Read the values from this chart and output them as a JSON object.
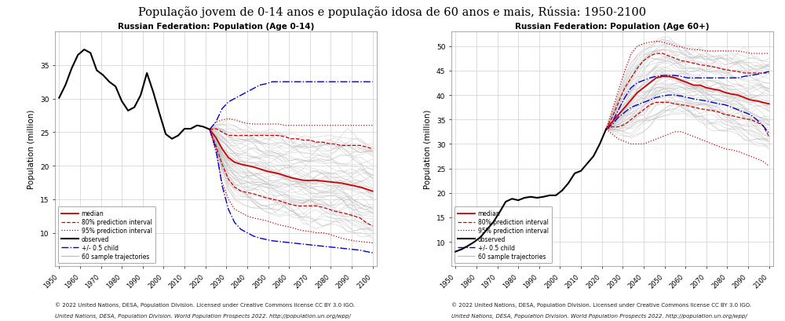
{
  "title": "População jovem de 0-14 anos e população idosa de 60 anos e mais, Rússia: 1950-2100",
  "title_fontsize": 10.5,
  "subtitle1": "Russian Federation: Population (Age 0-14)",
  "subtitle2": "Russian Federation: Population (Age 60+)",
  "subtitle_fontsize": 7.5,
  "ylabel": "Population (million)",
  "ylabel_fontsize": 7.5,
  "footnote_line1": "© 2022 United Nations, DESA, Population Division. Licensed under Creative Commons license CC BY 3.0 IGO.",
  "footnote_line2": "United Nations, DESA, Population Division. World Population Prospects 2022. http://population.un.org/wpp/",
  "footnote_fontsize": 5.0,
  "bg_color": "#ffffff",
  "grid_color": "#d0d0d0",
  "plot_bg": "#ffffff",
  "left_observed_years": [
    1950,
    1953,
    1956,
    1959,
    1962,
    1965,
    1968,
    1971,
    1974,
    1977,
    1980,
    1983,
    1986,
    1989,
    1992,
    1995,
    1998,
    2001,
    2004,
    2007,
    2010,
    2013,
    2016,
    2019,
    2022
  ],
  "left_observed_vals": [
    30.1,
    32.0,
    34.5,
    36.5,
    37.3,
    36.8,
    34.2,
    33.5,
    32.5,
    31.8,
    29.6,
    28.2,
    28.7,
    30.5,
    33.8,
    31.0,
    27.8,
    24.7,
    24.0,
    24.5,
    25.5,
    25.5,
    26.0,
    25.8,
    25.4
  ],
  "left_proj_years": [
    2022,
    2025,
    2028,
    2031,
    2034,
    2037,
    2040,
    2043,
    2046,
    2049,
    2052,
    2055,
    2058,
    2061,
    2064,
    2067,
    2070,
    2073,
    2076,
    2079,
    2082,
    2085,
    2088,
    2091,
    2094,
    2097,
    2100
  ],
  "left_median": [
    25.4,
    24.2,
    22.5,
    21.2,
    20.5,
    20.2,
    20.0,
    19.8,
    19.5,
    19.2,
    19.0,
    18.8,
    18.5,
    18.2,
    18.0,
    17.8,
    17.8,
    17.8,
    17.7,
    17.6,
    17.5,
    17.4,
    17.2,
    17.0,
    16.8,
    16.5,
    16.2
  ],
  "left_80_upper": [
    25.4,
    25.5,
    25.0,
    24.5,
    24.5,
    24.5,
    24.5,
    24.5,
    24.5,
    24.5,
    24.5,
    24.5,
    24.3,
    24.0,
    24.0,
    23.8,
    23.8,
    23.5,
    23.5,
    23.3,
    23.2,
    23.0,
    23.0,
    23.0,
    23.0,
    22.8,
    22.5
  ],
  "left_80_lower": [
    25.4,
    23.0,
    20.2,
    18.0,
    16.8,
    16.2,
    16.0,
    15.8,
    15.5,
    15.2,
    15.0,
    14.8,
    14.5,
    14.2,
    14.0,
    14.0,
    14.0,
    14.0,
    13.8,
    13.5,
    13.2,
    13.0,
    12.8,
    12.5,
    12.2,
    11.5,
    11.0
  ],
  "left_95_upper": [
    25.4,
    26.5,
    26.8,
    27.0,
    26.8,
    26.5,
    26.3,
    26.2,
    26.2,
    26.2,
    26.2,
    26.2,
    26.0,
    26.0,
    26.0,
    26.0,
    26.0,
    26.0,
    26.0,
    26.0,
    26.0,
    26.0,
    26.0,
    26.0,
    26.0,
    26.0,
    26.0
  ],
  "left_95_lower": [
    25.4,
    22.0,
    17.5,
    15.0,
    13.5,
    13.0,
    12.5,
    12.2,
    12.0,
    11.8,
    11.5,
    11.2,
    11.0,
    10.8,
    10.5,
    10.3,
    10.2,
    10.0,
    10.0,
    9.8,
    9.5,
    9.2,
    9.0,
    8.8,
    8.7,
    8.6,
    8.5
  ],
  "left_blue_upper": [
    25.4,
    26.5,
    28.5,
    29.5,
    30.0,
    30.5,
    31.0,
    31.5,
    32.0,
    32.2,
    32.5,
    32.5,
    32.5,
    32.5,
    32.5,
    32.5,
    32.5,
    32.5,
    32.5,
    32.5,
    32.5,
    32.5,
    32.5,
    32.5,
    32.5,
    32.5,
    32.5
  ],
  "left_blue_lower": [
    25.4,
    22.5,
    17.0,
    13.5,
    11.5,
    10.5,
    10.0,
    9.5,
    9.2,
    9.0,
    8.8,
    8.7,
    8.6,
    8.5,
    8.4,
    8.3,
    8.2,
    8.1,
    8.0,
    7.9,
    7.8,
    7.7,
    7.6,
    7.5,
    7.4,
    7.2,
    7.0
  ],
  "right_observed_years": [
    1950,
    1953,
    1956,
    1959,
    1962,
    1965,
    1968,
    1971,
    1974,
    1977,
    1980,
    1983,
    1986,
    1989,
    1992,
    1995,
    1998,
    2001,
    2004,
    2007,
    2010,
    2013,
    2016,
    2019,
    2022
  ],
  "right_observed_vals": [
    8.0,
    8.5,
    9.2,
    10.0,
    11.0,
    12.5,
    14.0,
    16.0,
    18.2,
    18.8,
    18.5,
    19.0,
    19.2,
    19.0,
    19.2,
    19.5,
    19.5,
    20.5,
    22.0,
    24.0,
    24.5,
    26.0,
    27.5,
    30.0,
    33.0
  ],
  "right_proj_years": [
    2022,
    2025,
    2028,
    2031,
    2034,
    2037,
    2040,
    2043,
    2046,
    2049,
    2052,
    2055,
    2058,
    2061,
    2064,
    2067,
    2070,
    2073,
    2076,
    2079,
    2082,
    2085,
    2088,
    2091,
    2094,
    2097,
    2100
  ],
  "right_median": [
    33.0,
    34.5,
    36.0,
    37.5,
    39.0,
    40.5,
    41.5,
    42.5,
    43.5,
    43.8,
    43.8,
    43.5,
    43.0,
    42.5,
    42.0,
    42.0,
    41.5,
    41.2,
    41.0,
    40.5,
    40.2,
    40.0,
    39.5,
    39.0,
    38.8,
    38.5,
    38.2
  ],
  "right_80_upper": [
    33.0,
    35.5,
    38.5,
    41.5,
    43.5,
    45.5,
    47.0,
    48.0,
    48.5,
    48.5,
    48.0,
    47.5,
    47.0,
    46.8,
    46.5,
    46.2,
    46.0,
    45.8,
    45.5,
    45.2,
    45.0,
    44.8,
    44.5,
    44.5,
    44.5,
    44.5,
    44.5
  ],
  "right_80_lower": [
    33.0,
    33.5,
    33.5,
    34.0,
    35.0,
    36.0,
    37.0,
    38.0,
    38.5,
    38.5,
    38.5,
    38.2,
    38.0,
    37.8,
    37.5,
    37.2,
    37.0,
    36.8,
    36.5,
    36.0,
    35.8,
    35.5,
    35.2,
    35.0,
    34.5,
    33.8,
    31.5
  ],
  "right_95_upper": [
    33.0,
    37.0,
    41.0,
    45.0,
    48.5,
    50.0,
    50.5,
    50.8,
    51.0,
    50.8,
    50.5,
    50.0,
    49.8,
    49.5,
    49.3,
    49.2,
    49.0,
    49.0,
    49.0,
    49.0,
    49.0,
    49.0,
    48.8,
    48.5,
    48.5,
    48.5,
    48.5
  ],
  "right_95_lower": [
    33.0,
    32.0,
    31.0,
    30.5,
    30.0,
    30.0,
    30.0,
    30.5,
    31.0,
    31.5,
    32.0,
    32.5,
    32.5,
    32.0,
    31.5,
    31.0,
    30.5,
    30.0,
    29.5,
    29.0,
    28.8,
    28.5,
    28.0,
    27.5,
    27.0,
    26.5,
    25.5
  ],
  "right_blue_upper": [
    33.0,
    34.5,
    37.0,
    39.5,
    41.5,
    42.5,
    43.0,
    43.5,
    43.8,
    44.0,
    44.0,
    44.0,
    43.8,
    43.5,
    43.5,
    43.5,
    43.5,
    43.5,
    43.5,
    43.5,
    43.5,
    43.5,
    43.8,
    44.0,
    44.2,
    44.5,
    44.8
  ],
  "right_blue_lower": [
    33.0,
    34.0,
    35.5,
    36.5,
    37.5,
    38.0,
    38.5,
    39.0,
    39.5,
    39.8,
    40.0,
    40.0,
    39.8,
    39.5,
    39.2,
    39.0,
    38.8,
    38.5,
    38.2,
    38.0,
    37.5,
    37.0,
    36.5,
    36.0,
    35.0,
    33.8,
    32.2
  ],
  "left_ylim": [
    5,
    40
  ],
  "left_yticks": [
    10,
    15,
    20,
    25,
    30,
    35
  ],
  "right_ylim": [
    5,
    53
  ],
  "right_yticks": [
    10,
    15,
    20,
    25,
    30,
    35,
    40,
    45,
    50
  ],
  "xlim": [
    1948,
    2102
  ],
  "xticks": [
    1950,
    1960,
    1970,
    1980,
    1990,
    2000,
    2010,
    2020,
    2030,
    2040,
    2050,
    2060,
    2070,
    2080,
    2090,
    2100
  ]
}
